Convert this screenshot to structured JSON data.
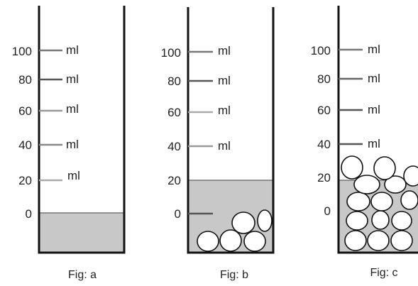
{
  "colors": {
    "liquid": "#c8c8c8",
    "wall": "#111111",
    "tick": "#777777"
  },
  "figures": [
    {
      "caption": "Fig: a",
      "unit": "ml",
      "scale": [
        {
          "value": "100",
          "unit": "ml"
        },
        {
          "value": "80",
          "unit": "ml"
        },
        {
          "value": "60",
          "unit": "ml"
        },
        {
          "value": "40",
          "unit": "ml"
        },
        {
          "value": "20",
          "unit": "ml"
        },
        {
          "value": "0",
          "unit": ""
        }
      ],
      "liquid_level_ml": 0,
      "balls": "none"
    },
    {
      "caption": "Fig: b",
      "unit": "ml",
      "scale": [
        {
          "value": "100",
          "unit": "ml"
        },
        {
          "value": "80",
          "unit": "ml"
        },
        {
          "value": "60",
          "unit": "ml"
        },
        {
          "value": "40",
          "unit": "ml"
        },
        {
          "value": "20",
          "unit": ""
        },
        {
          "value": "0",
          "unit": ""
        }
      ],
      "liquid_level_ml": 20,
      "balls": "few, submerged"
    },
    {
      "caption": "Fig: c",
      "unit": "ml",
      "scale": [
        {
          "value": "100",
          "unit": "ml"
        },
        {
          "value": "80",
          "unit": "ml"
        },
        {
          "value": "60",
          "unit": "ml"
        },
        {
          "value": "40",
          "unit": "ml"
        },
        {
          "value": "20",
          "unit": ""
        },
        {
          "value": "0",
          "unit": ""
        }
      ],
      "liquid_level_ml": 20,
      "balls": "many, heaped above liquid"
    }
  ]
}
